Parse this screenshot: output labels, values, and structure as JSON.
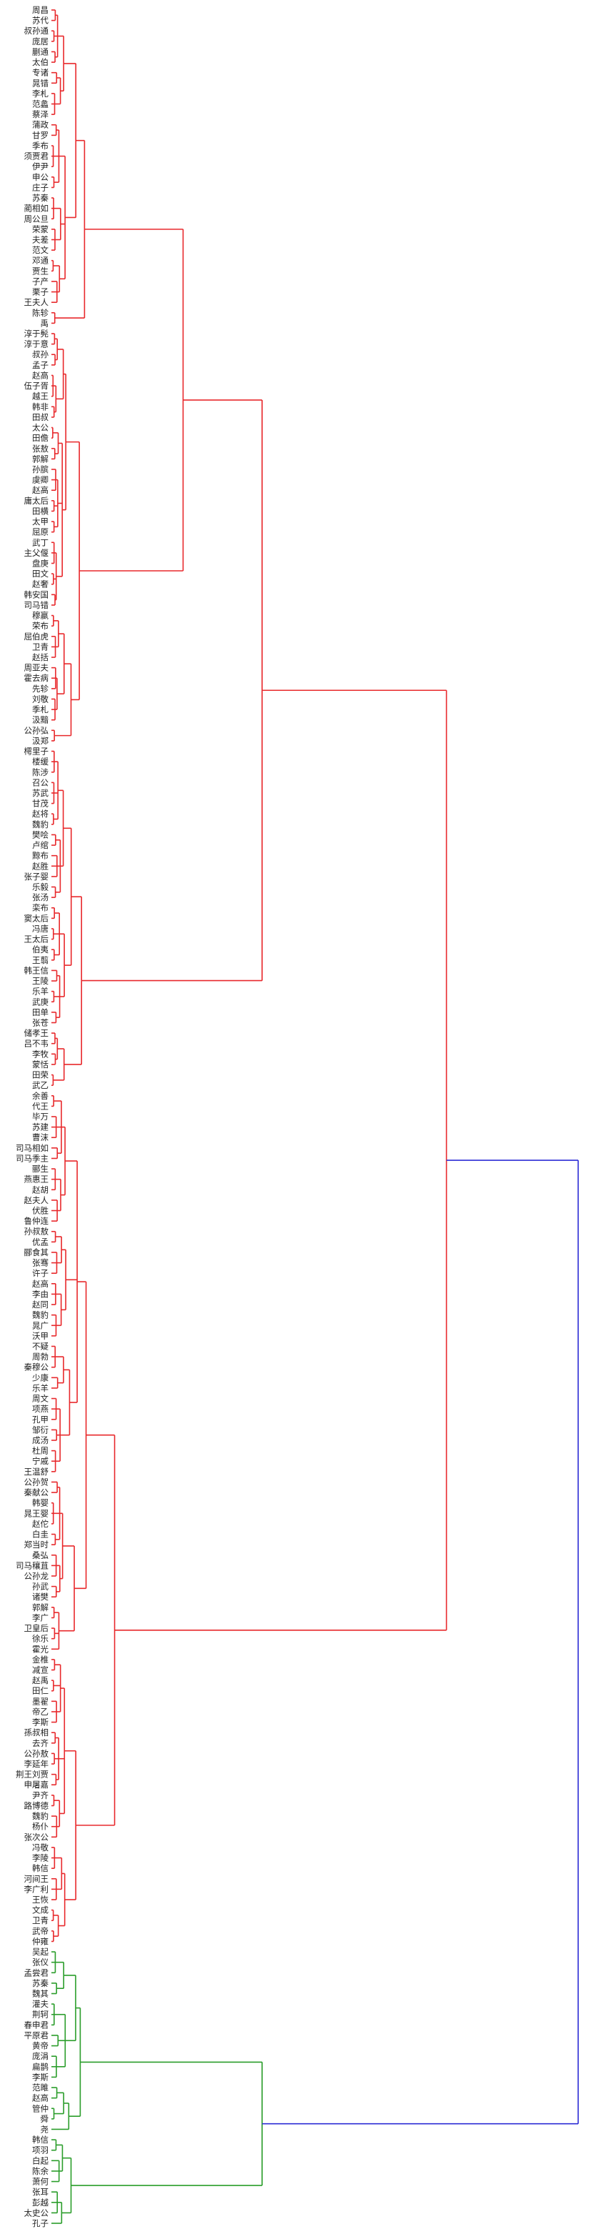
{
  "chart_data": {
    "type": "dendrogram",
    "orientation": "left-to-right",
    "title": "",
    "xlabel": "",
    "ylabel": "",
    "colors": {
      "cluster_a": "#e8282b",
      "cluster_b": "#2a9d2a",
      "root": "#2b2bd6"
    },
    "xlim": [
      0,
      100
    ],
    "leaves": [
      "周昌",
      "苏代",
      "叔孙通",
      "庞居",
      "蒯通",
      "太伯",
      "专诸",
      "晁错",
      "李札",
      "范蠡",
      "蔡泽",
      "蒲政",
      "甘罗",
      "季布",
      "须贾君",
      "伊尹",
      "申公",
      "庄子",
      "苏秦",
      "蔺相如",
      "周公旦",
      "荣蒙",
      "夫差",
      "范文",
      "邓通",
      "贾生",
      "子产",
      "栗子",
      "王夫人",
      "陈轸",
      "禹",
      "淳于髡",
      "淳于意",
      "叔孙",
      "孟子",
      "赵高",
      "伍子胥",
      "越王",
      "韩非",
      "田叔",
      "太公",
      "田儋",
      "张敖",
      "郭解",
      "孙膑",
      "虞卿",
      "赵高",
      "庸太后",
      "田横",
      "太甲",
      "屈原",
      "武丁",
      "主父偃",
      "盘庚",
      "田文",
      "赵奢",
      "韩安国",
      "司马错",
      "穆嬴",
      "荣布",
      "屈伯虎",
      "卫青",
      "赵括",
      "周亚夫",
      "霍去病",
      "先轸",
      "刘敬",
      "季札",
      "汲黯",
      "公孙弘",
      "汲郑",
      "樗里子",
      "楼缓",
      "陈涉",
      "召公",
      "苏武",
      "甘茂",
      "赵将",
      "魏豹",
      "樊哙",
      "卢绾",
      "黥布",
      "赵胜",
      "张子婴",
      "乐毅",
      "张汤",
      "栾布",
      "窦太后",
      "冯唐",
      "王太后",
      "伯夷",
      "王翦",
      "韩王信",
      "王陵",
      "乐羊",
      "武庚",
      "田单",
      "张苍",
      "储孝王",
      "吕不韦",
      "李牧",
      "蒙恬",
      "田荣",
      "武乙",
      "余善",
      "代王",
      "毕万",
      "苏建",
      "曹沫",
      "司马相如",
      "司马季主",
      "郦生",
      "燕惠王",
      "赵胡",
      "赵夫人",
      "伏胜",
      "鲁仲连",
      "孙叔敖",
      "优孟",
      "郦食其",
      "张骞",
      "许子",
      "赵高",
      "李由",
      "赵同",
      "魏豹",
      "晁广",
      "沃甲",
      "不疑",
      "周勃",
      "秦穆公",
      "少康",
      "乐羊",
      "周文",
      "项燕",
      "孔甲",
      "邹衍",
      "成汤",
      "杜周",
      "宁戚",
      "王温舒",
      "公孙贺",
      "秦献公",
      "韩婴",
      "晁王婴",
      "赵佗",
      "白圭",
      "郑当时",
      "桑弘",
      "司马穰苴",
      "公孙龙",
      "孙武",
      "诸樊",
      "郭解",
      "李广",
      "卫皇后",
      "徐乐",
      "霍光",
      "金椎",
      "减宣",
      "赵禹",
      "田仁",
      "墨翟",
      "帝乙",
      "李斯",
      "孫叔相",
      "去齐",
      "公孙敖",
      "李延年",
      "荆王刘贾",
      "申屠嘉",
      "尹齐",
      "路博德",
      "魏豹",
      "杨仆",
      "张次公",
      "冯敬",
      "李陵",
      "韩信",
      "河间王",
      "李广利",
      "王恢",
      "文成",
      "卫青",
      "武帝",
      "仲雍",
      "吴起",
      "张仪",
      "孟尝君",
      "苏秦",
      "魏其",
      "灌夫",
      "荆轲",
      "春申君",
      "平原君",
      "黄帝",
      "庞涓",
      "扁鹊",
      "李斯",
      "范雎",
      "赵高",
      "管仲",
      "舜",
      "尧",
      "韩信",
      "项羽",
      "白起",
      "陈余",
      "萧何",
      "张耳",
      "彭越",
      "太史公",
      "孔子"
    ]
  }
}
